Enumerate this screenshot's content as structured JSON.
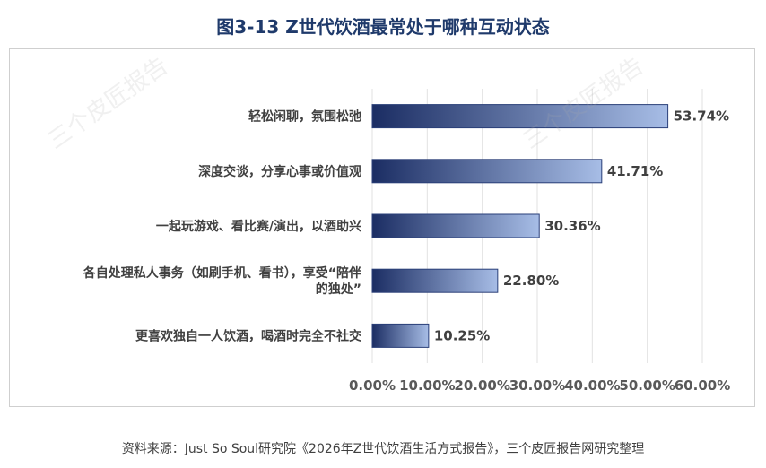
{
  "title": "图3-13 Z世代饮酒最常处于哪种互动状态",
  "watermark": "三个皮匠报告",
  "source": "资料来源：Just So Soul研究院《2026年Z世代饮酒生活方式报告》，三个皮匠报告网研究整理",
  "chart_data": {
    "type": "bar",
    "orientation": "horizontal",
    "title": "图3-13 Z世代饮酒最常处于哪种互动状态",
    "categories": [
      "轻松闲聊，氛围松弛",
      "深度交谈，分享心事或价值观",
      "一起玩游戏、看比赛/演出，以酒助兴",
      "各自处理私人事务（如刷手机、看书），享受“陪伴的独处”",
      "更喜欢独自一人饮酒，喝酒时完全不社交"
    ],
    "category_lines": [
      [
        "轻松闲聊，氛围松弛"
      ],
      [
        "深度交谈，分享心事或价值观"
      ],
      [
        "一起玩游戏、看比赛/演出，以酒助兴"
      ],
      [
        "各自处理私人事务（如刷手机、看书），享受“陪伴",
        "的独处”"
      ],
      [
        "更喜欢独自一人饮酒，喝酒时完全不社交"
      ]
    ],
    "values": [
      53.74,
      41.71,
      30.36,
      22.8,
      10.25
    ],
    "value_labels": [
      "53.74%",
      "41.71%",
      "30.36%",
      "22.80%",
      "10.25%"
    ],
    "xlim": [
      0,
      60
    ],
    "xticks": [
      0,
      10,
      20,
      30,
      40,
      50,
      60
    ],
    "xtick_labels": [
      "0.00%",
      "10.00%",
      "20.00%",
      "30.00%",
      "40.00%",
      "50.00%",
      "60.00%"
    ],
    "grid": true,
    "legend": "none",
    "bar_gradient": [
      "#1b2d63",
      "#a7bde6"
    ],
    "bar_border": "#2a3f78"
  }
}
